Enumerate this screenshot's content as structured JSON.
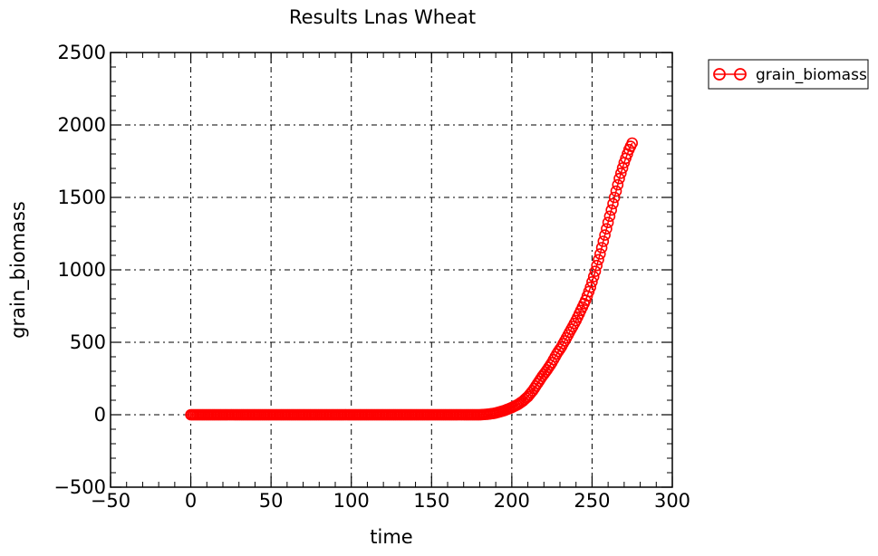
{
  "chart_data": {
    "type": "scatter",
    "title": "Results Lnas Wheat",
    "xlabel": "time",
    "ylabel": "grain_biomass",
    "xlim": [
      -50,
      300
    ],
    "ylim": [
      -500,
      2500
    ],
    "xticks": [
      -50,
      0,
      50,
      100,
      150,
      200,
      250,
      300
    ],
    "xtick_labels": [
      "−50",
      "0",
      "50",
      "100",
      "150",
      "200",
      "250",
      "300"
    ],
    "yticks": [
      -500,
      0,
      500,
      1000,
      1500,
      2000,
      2500
    ],
    "ytick_labels": [
      "−500",
      "0",
      "500",
      "1000",
      "1500",
      "2000",
      "2500"
    ],
    "grid": true,
    "legend": "outside-top-right",
    "colors": {
      "series": "#ff0000"
    },
    "series": [
      {
        "name": "grain_biomass",
        "marker": "open-circle",
        "line": true,
        "x_start": 0,
        "x_end": 275,
        "x_step": 1,
        "note_flat_value": 0,
        "x": [
          0,
          180,
          183,
          186,
          189,
          192,
          195,
          198,
          201,
          204,
          207,
          210,
          213,
          216,
          219,
          222,
          225,
          228,
          231,
          234,
          237,
          240,
          243,
          246,
          249,
          252,
          255,
          258,
          261,
          264,
          267,
          270,
          273,
          275
        ],
        "y": [
          0,
          0,
          2,
          5,
          10,
          18,
          28,
          40,
          55,
          72,
          95,
          125,
          165,
          215,
          265,
          310,
          360,
          420,
          470,
          530,
          590,
          650,
          720,
          790,
          880,
          990,
          1110,
          1240,
          1370,
          1500,
          1630,
          1740,
          1830,
          1875
        ]
      }
    ]
  }
}
